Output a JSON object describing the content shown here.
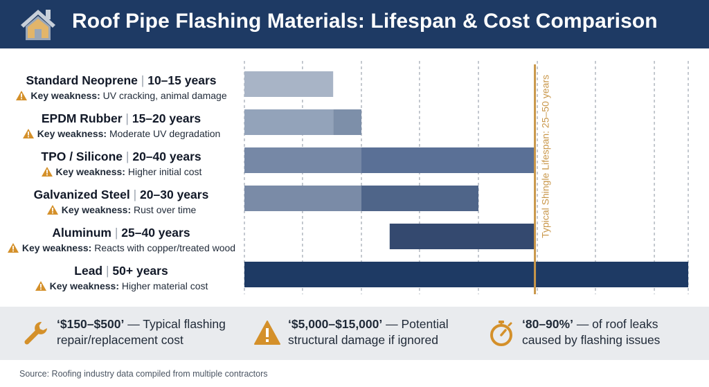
{
  "header": {
    "title": "Roof Pipe Flashing Materials: Lifespan & Cost Comparison"
  },
  "chart_data": {
    "type": "bar",
    "orientation": "horizontal-range",
    "xlim": [
      0,
      55
    ],
    "grid": "vertical-dashed",
    "reference_line": {
      "value": 36,
      "label": "Typical Shingle Lifespan: 25–50 years",
      "color": "#c9974a"
    },
    "categories": [
      "Standard Neoprene",
      "EPDM Rubber",
      "TPO / Silicone",
      "Galvanized Steel",
      "Aluminum",
      "Lead"
    ],
    "series": [
      {
        "items": [
          {
            "name": "Standard Neoprene",
            "range_text": "10–15 years",
            "weakness": "UV cracking, animal damage",
            "min": 0,
            "max": 11,
            "segments": [
              {
                "from": 0,
                "to": 11,
                "color": "#a8b4c6"
              }
            ]
          },
          {
            "name": "EPDM Rubber",
            "range_text": "15–20 years",
            "weakness": "Moderate UV degradation",
            "min": 0,
            "max": 14.5,
            "segments": [
              {
                "from": 0,
                "to": 11,
                "color": "#93a3ba"
              },
              {
                "from": 11,
                "to": 14.5,
                "color": "#7d8fa9"
              }
            ]
          },
          {
            "name": "TPO / Silicone",
            "range_text": "20–40 years",
            "weakness": "Higher initial cost",
            "min": 0,
            "max": 36,
            "segments": [
              {
                "from": 0,
                "to": 14.5,
                "color": "#7688a6"
              },
              {
                "from": 14.5,
                "to": 36,
                "color": "#5a7096"
              }
            ]
          },
          {
            "name": "Galvanized Steel",
            "range_text": "20–30 years",
            "weakness": "Rust over time",
            "min": 0,
            "max": 29,
            "segments": [
              {
                "from": 0,
                "to": 14.5,
                "color": "#7a8ba7"
              },
              {
                "from": 14.5,
                "to": 29,
                "color": "#4f6589"
              }
            ]
          },
          {
            "name": "Aluminum",
            "range_text": "25–40 years",
            "weakness": "Reacts with copper/treated wood",
            "min": 18,
            "max": 36,
            "segments": [
              {
                "from": 18,
                "to": 36,
                "color": "#34496f"
              }
            ]
          },
          {
            "name": "Lead",
            "range_text": "50+ years",
            "weakness": "Higher material cost",
            "min": 0,
            "max": 55,
            "segments": [
              {
                "from": 0,
                "to": 55,
                "color": "#1e3a64"
              }
            ]
          }
        ]
      }
    ]
  },
  "labels": {
    "key_weakness_prefix": "Key weakness:",
    "separator": "|"
  },
  "stats": [
    {
      "icon": "wrench-icon",
      "value": "‘$150–$500’",
      "line1_rest": " — Typical flashing",
      "line2": "repair/replacement cost"
    },
    {
      "icon": "warning-icon",
      "value": "‘$5,000–$15,000’",
      "line1_rest": " — Potential",
      "line2": "structural damage if ignored"
    },
    {
      "icon": "stopwatch-icon",
      "value": "‘80–90%’",
      "line1_rest": " — of roof leaks",
      "line2": "caused by flashing issues"
    }
  ],
  "colors": {
    "header_bg": "#1e3a64",
    "accent": "#d4902a",
    "reference_line": "#c9974a"
  },
  "source": "Source: Roofing industry data compiled from multiple contractors"
}
